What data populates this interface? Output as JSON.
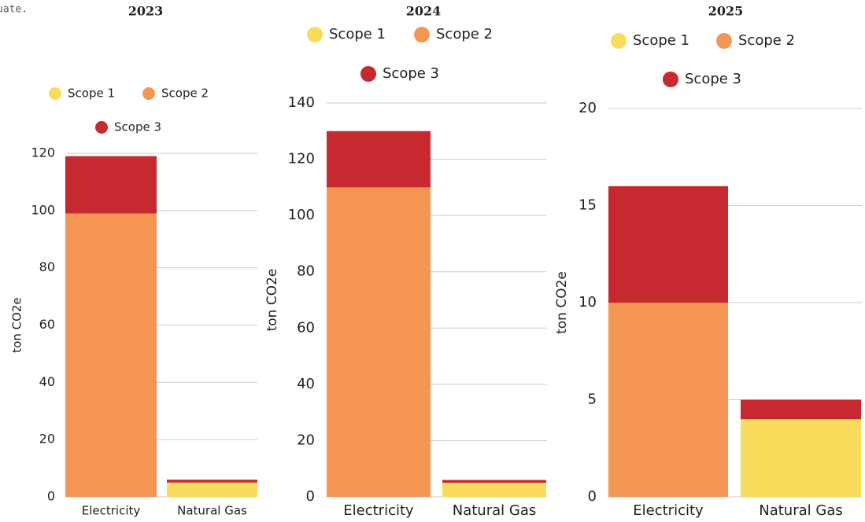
{
  "fragment": "uate.",
  "chart_data": [
    {
      "type": "bar",
      "stacked": true,
      "title": "2023",
      "ylabel": "ton CO2e",
      "categories": [
        "Electricity",
        "Natural Gas"
      ],
      "series": [
        {
          "name": "Scope 1",
          "color": "#f9dc5c",
          "values": [
            0,
            5
          ]
        },
        {
          "name": "Scope 2",
          "color": "#f59554",
          "values": [
            99,
            0
          ]
        },
        {
          "name": "Scope 3",
          "color": "#c62a30",
          "values": [
            20,
            1
          ]
        }
      ],
      "ylim": [
        0,
        120
      ],
      "yticks": [
        0,
        20,
        40,
        60,
        80,
        100,
        120
      ],
      "grid": true
    },
    {
      "type": "bar",
      "stacked": true,
      "title": "2024",
      "ylabel": "ton CO2e",
      "categories": [
        "Electricity",
        "Natural Gas"
      ],
      "series": [
        {
          "name": "Scope 1",
          "color": "#f9dc5c",
          "values": [
            0,
            5
          ]
        },
        {
          "name": "Scope 2",
          "color": "#f59554",
          "values": [
            110,
            0
          ]
        },
        {
          "name": "Scope 3",
          "color": "#c62a30",
          "values": [
            20,
            1
          ]
        }
      ],
      "ylim": [
        0,
        140
      ],
      "yticks": [
        0,
        20,
        40,
        60,
        80,
        100,
        120,
        140
      ],
      "grid": true
    },
    {
      "type": "bar",
      "stacked": true,
      "title": "2025",
      "ylabel": "ton CO2e",
      "categories": [
        "Electricity",
        "Natural Gas"
      ],
      "series": [
        {
          "name": "Scope 1",
          "color": "#f9dc5c",
          "values": [
            0,
            4
          ]
        },
        {
          "name": "Scope 2",
          "color": "#f59554",
          "values": [
            10,
            0
          ]
        },
        {
          "name": "Scope 3",
          "color": "#c62a30",
          "values": [
            6,
            1
          ]
        }
      ],
      "ylim": [
        0,
        20
      ],
      "yticks": [
        0,
        5,
        10,
        15,
        20
      ],
      "grid": true
    }
  ]
}
